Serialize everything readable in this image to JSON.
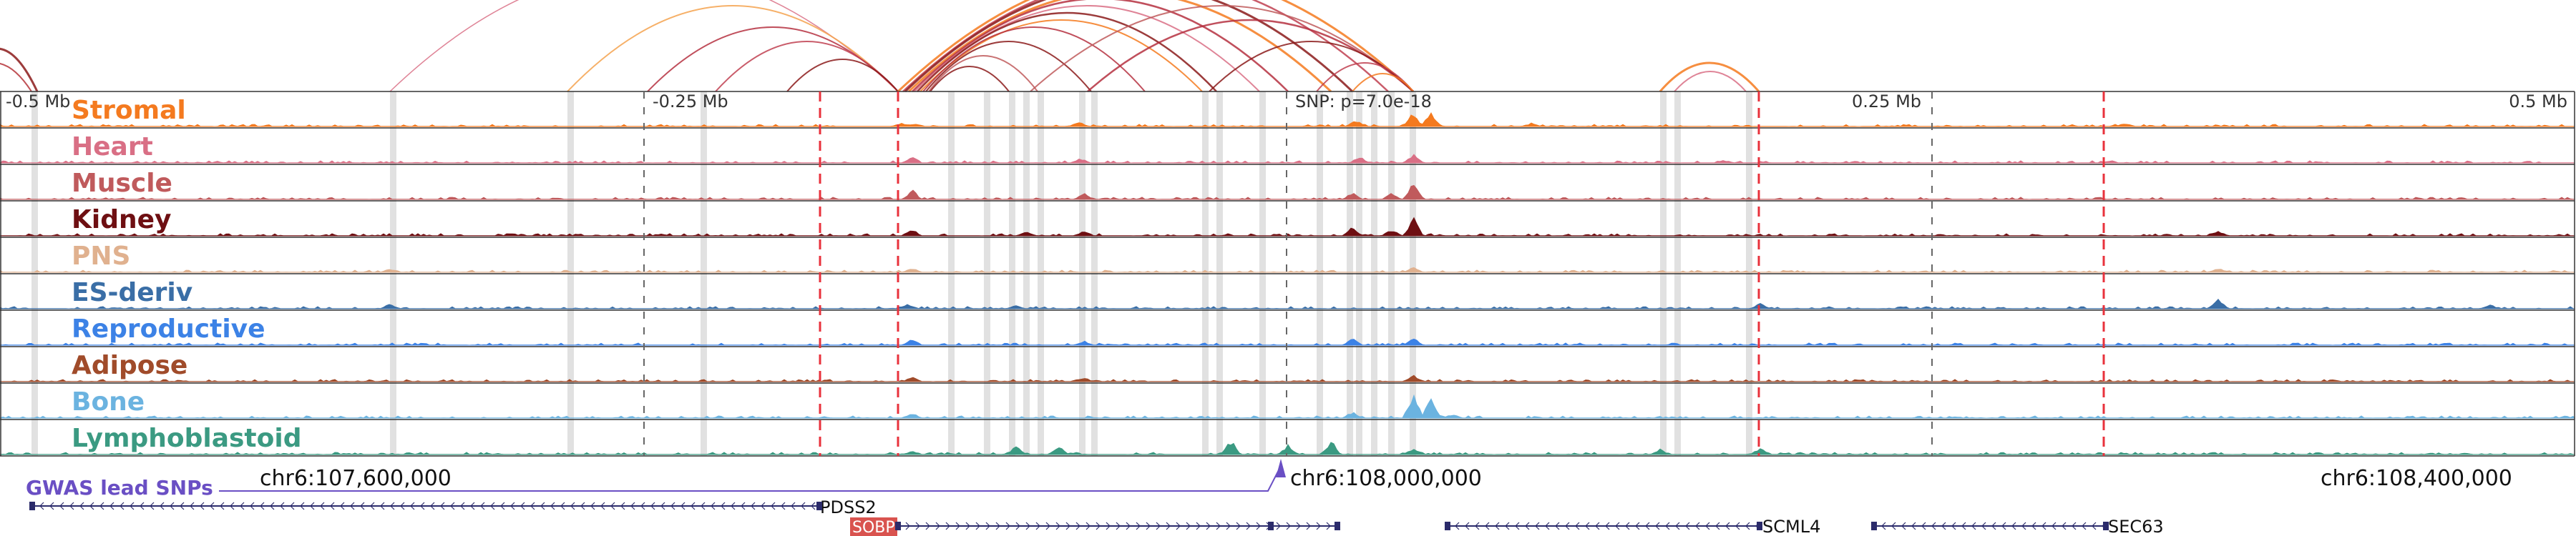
{
  "tracks": [
    {
      "label": "Stromal",
      "color": "#f47a1f"
    },
    {
      "label": "Heart",
      "color": "#d96f85"
    },
    {
      "label": "Muscle",
      "color": "#c05a5c"
    },
    {
      "label": "Kidney",
      "color": "#6e0f12"
    },
    {
      "label": "PNS",
      "color": "#e0b18f"
    },
    {
      "label": "ES-deriv",
      "color": "#3a6ea6"
    },
    {
      "label": "Reproductive",
      "color": "#3c82e6"
    },
    {
      "label": "Adipose",
      "color": "#a04b2a"
    },
    {
      "label": "Bone",
      "color": "#6bb3e0"
    },
    {
      "label": "Lymphoblastoid",
      "color": "#3b9a82"
    }
  ],
  "offset_labels": {
    "left": "-0.5 Mb",
    "left_mid": "-0.25 Mb",
    "snp": "SNP: p=7.0e-18",
    "right_mid": "0.25 Mb",
    "right": "0.5 Mb"
  },
  "coords": [
    "chr6:107,600,000",
    "chr6:108,000,000",
    "chr6:108,400,000"
  ],
  "gwas_label": "GWAS lead SNPs",
  "gwas_color": "#6a4fc4",
  "genes": [
    {
      "name": "PDSS2",
      "strand": "-",
      "color": "#2b2b6b"
    },
    {
      "name": "SOBP",
      "strand": "+",
      "color": "#2b2b6b",
      "highlight": "#d9534f"
    },
    {
      "name": "SCML4",
      "strand": "-",
      "color": "#2b2b6b"
    },
    {
      "name": "SEC63",
      "strand": "-",
      "color": "#2b2b6b"
    }
  ],
  "colors": {
    "ccre_line": "#e8323c",
    "shade": "#c8c8c8",
    "frame": "#333333"
  }
}
